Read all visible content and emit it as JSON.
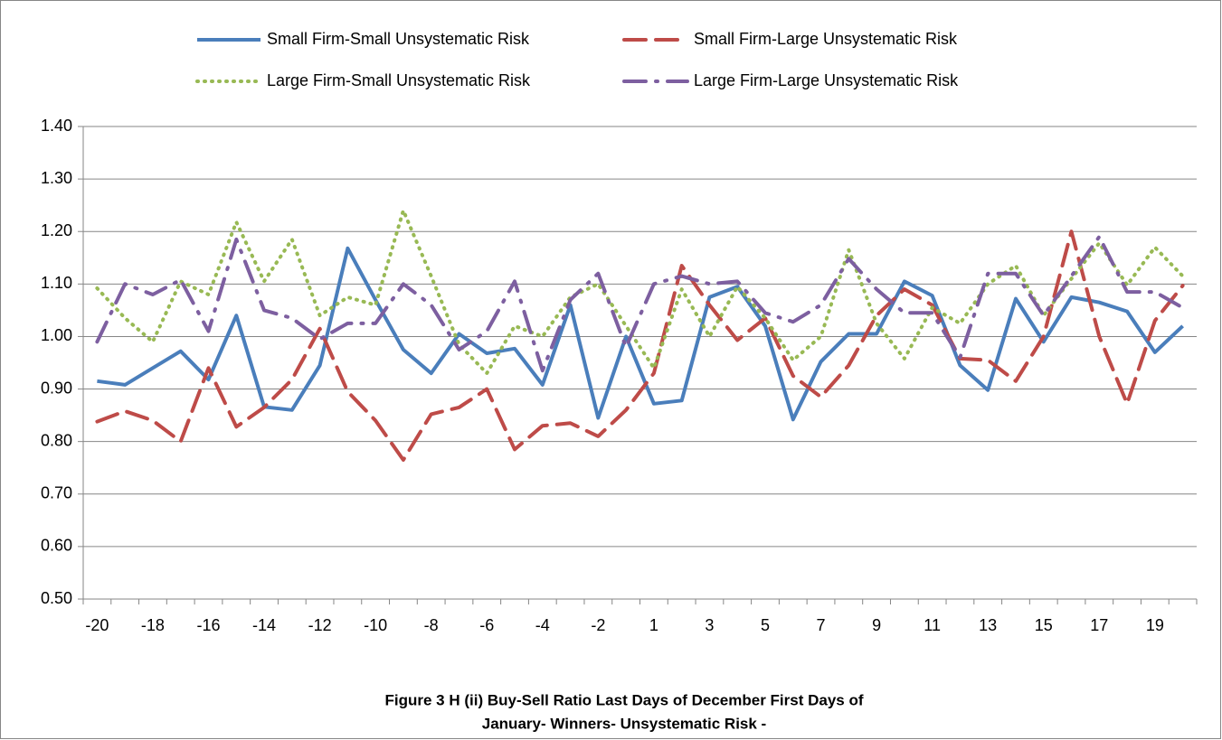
{
  "chart_data": {
    "type": "line",
    "title": [
      "Figure 3 H (ii) Buy-Sell Ratio Last Days of December First Days of",
      "January- Winners- Unsystematic Risk  -"
    ],
    "categories": [
      -20,
      null,
      -18,
      null,
      -16,
      null,
      -14,
      null,
      -12,
      null,
      -10,
      null,
      -8,
      null,
      -6,
      null,
      -4,
      null,
      -2,
      null,
      1,
      null,
      3,
      null,
      5,
      null,
      7,
      null,
      9,
      null,
      11,
      null,
      13,
      null,
      15,
      null,
      17,
      null,
      19,
      null
    ],
    "series": [
      {
        "name": "Small Firm-Small Unsystematic Risk",
        "color": "#4a7ebb",
        "dash": "none",
        "values": [
          0.915,
          0.908,
          0.94,
          0.972,
          0.918,
          1.04,
          0.866,
          0.86,
          0.945,
          1.168,
          1.07,
          0.975,
          0.93,
          1.005,
          0.968,
          0.977,
          0.908,
          1.06,
          0.845,
          1.0,
          0.872,
          0.878,
          1.075,
          1.095,
          1.02,
          0.842,
          0.952,
          1.005,
          1.005,
          1.105,
          1.078,
          0.945,
          0.898,
          1.072,
          0.99,
          1.075,
          1.065,
          1.048,
          0.97,
          1.02
        ]
      },
      {
        "name": "Small Firm-Large Unsystematic Risk",
        "color": "#be4b48",
        "dash": "24,11",
        "values": [
          0.838,
          0.858,
          0.84,
          0.8,
          0.94,
          0.828,
          0.865,
          0.918,
          1.015,
          0.895,
          0.84,
          0.765,
          0.852,
          0.865,
          0.9,
          0.785,
          0.83,
          0.835,
          0.81,
          0.86,
          0.93,
          1.135,
          1.06,
          0.993,
          1.035,
          0.925,
          0.885,
          0.945,
          1.04,
          1.09,
          1.06,
          0.958,
          0.955,
          0.915,
          1.0,
          1.2,
          1.0,
          0.872,
          1.03,
          1.097
        ]
      },
      {
        "name": "Large Firm-Small Unsystematic Risk",
        "color": "#98b954",
        "dash": "1,7",
        "values": [
          1.092,
          1.035,
          0.99,
          1.105,
          1.08,
          1.218,
          1.105,
          1.185,
          1.04,
          1.075,
          1.06,
          1.24,
          1.115,
          0.985,
          0.93,
          1.02,
          1.0,
          1.075,
          1.1,
          1.02,
          0.94,
          1.09,
          1.0,
          1.095,
          1.035,
          0.955,
          1.0,
          1.165,
          1.025,
          0.958,
          1.055,
          1.025,
          1.1,
          1.135,
          1.04,
          1.11,
          1.178,
          1.098,
          1.17,
          1.115
        ]
      },
      {
        "name": "Large Firm-Large Unsystematic Risk",
        "color": "#7d5fa0",
        "dash": "24,11,2,11",
        "values": [
          0.99,
          1.1,
          1.08,
          1.108,
          1.01,
          1.185,
          1.05,
          1.035,
          0.995,
          1.025,
          1.025,
          1.1,
          1.06,
          0.975,
          1.01,
          1.105,
          0.935,
          1.07,
          1.12,
          0.98,
          1.1,
          1.115,
          1.1,
          1.105,
          1.045,
          1.028,
          1.06,
          1.148,
          1.09,
          1.045,
          1.045,
          0.96,
          1.12,
          1.12,
          1.04,
          1.115,
          1.19,
          1.085,
          1.085,
          1.055
        ]
      }
    ],
    "ylim": [
      0.5,
      1.4
    ],
    "yticks": [
      {
        "value": 0.5,
        "label": "0.50"
      },
      {
        "value": 0.6,
        "label": "0.60"
      },
      {
        "value": 0.7,
        "label": "0.70"
      },
      {
        "value": 0.8,
        "label": "0.80"
      },
      {
        "value": 0.9,
        "label": "0.90"
      },
      {
        "value": 1.0,
        "label": "1.00"
      },
      {
        "value": 1.1,
        "label": "1.10"
      },
      {
        "value": 1.2,
        "label": "1.20"
      },
      {
        "value": 1.3,
        "label": "1.30"
      },
      {
        "value": 1.4,
        "label": "1.40"
      }
    ],
    "grid": true
  }
}
